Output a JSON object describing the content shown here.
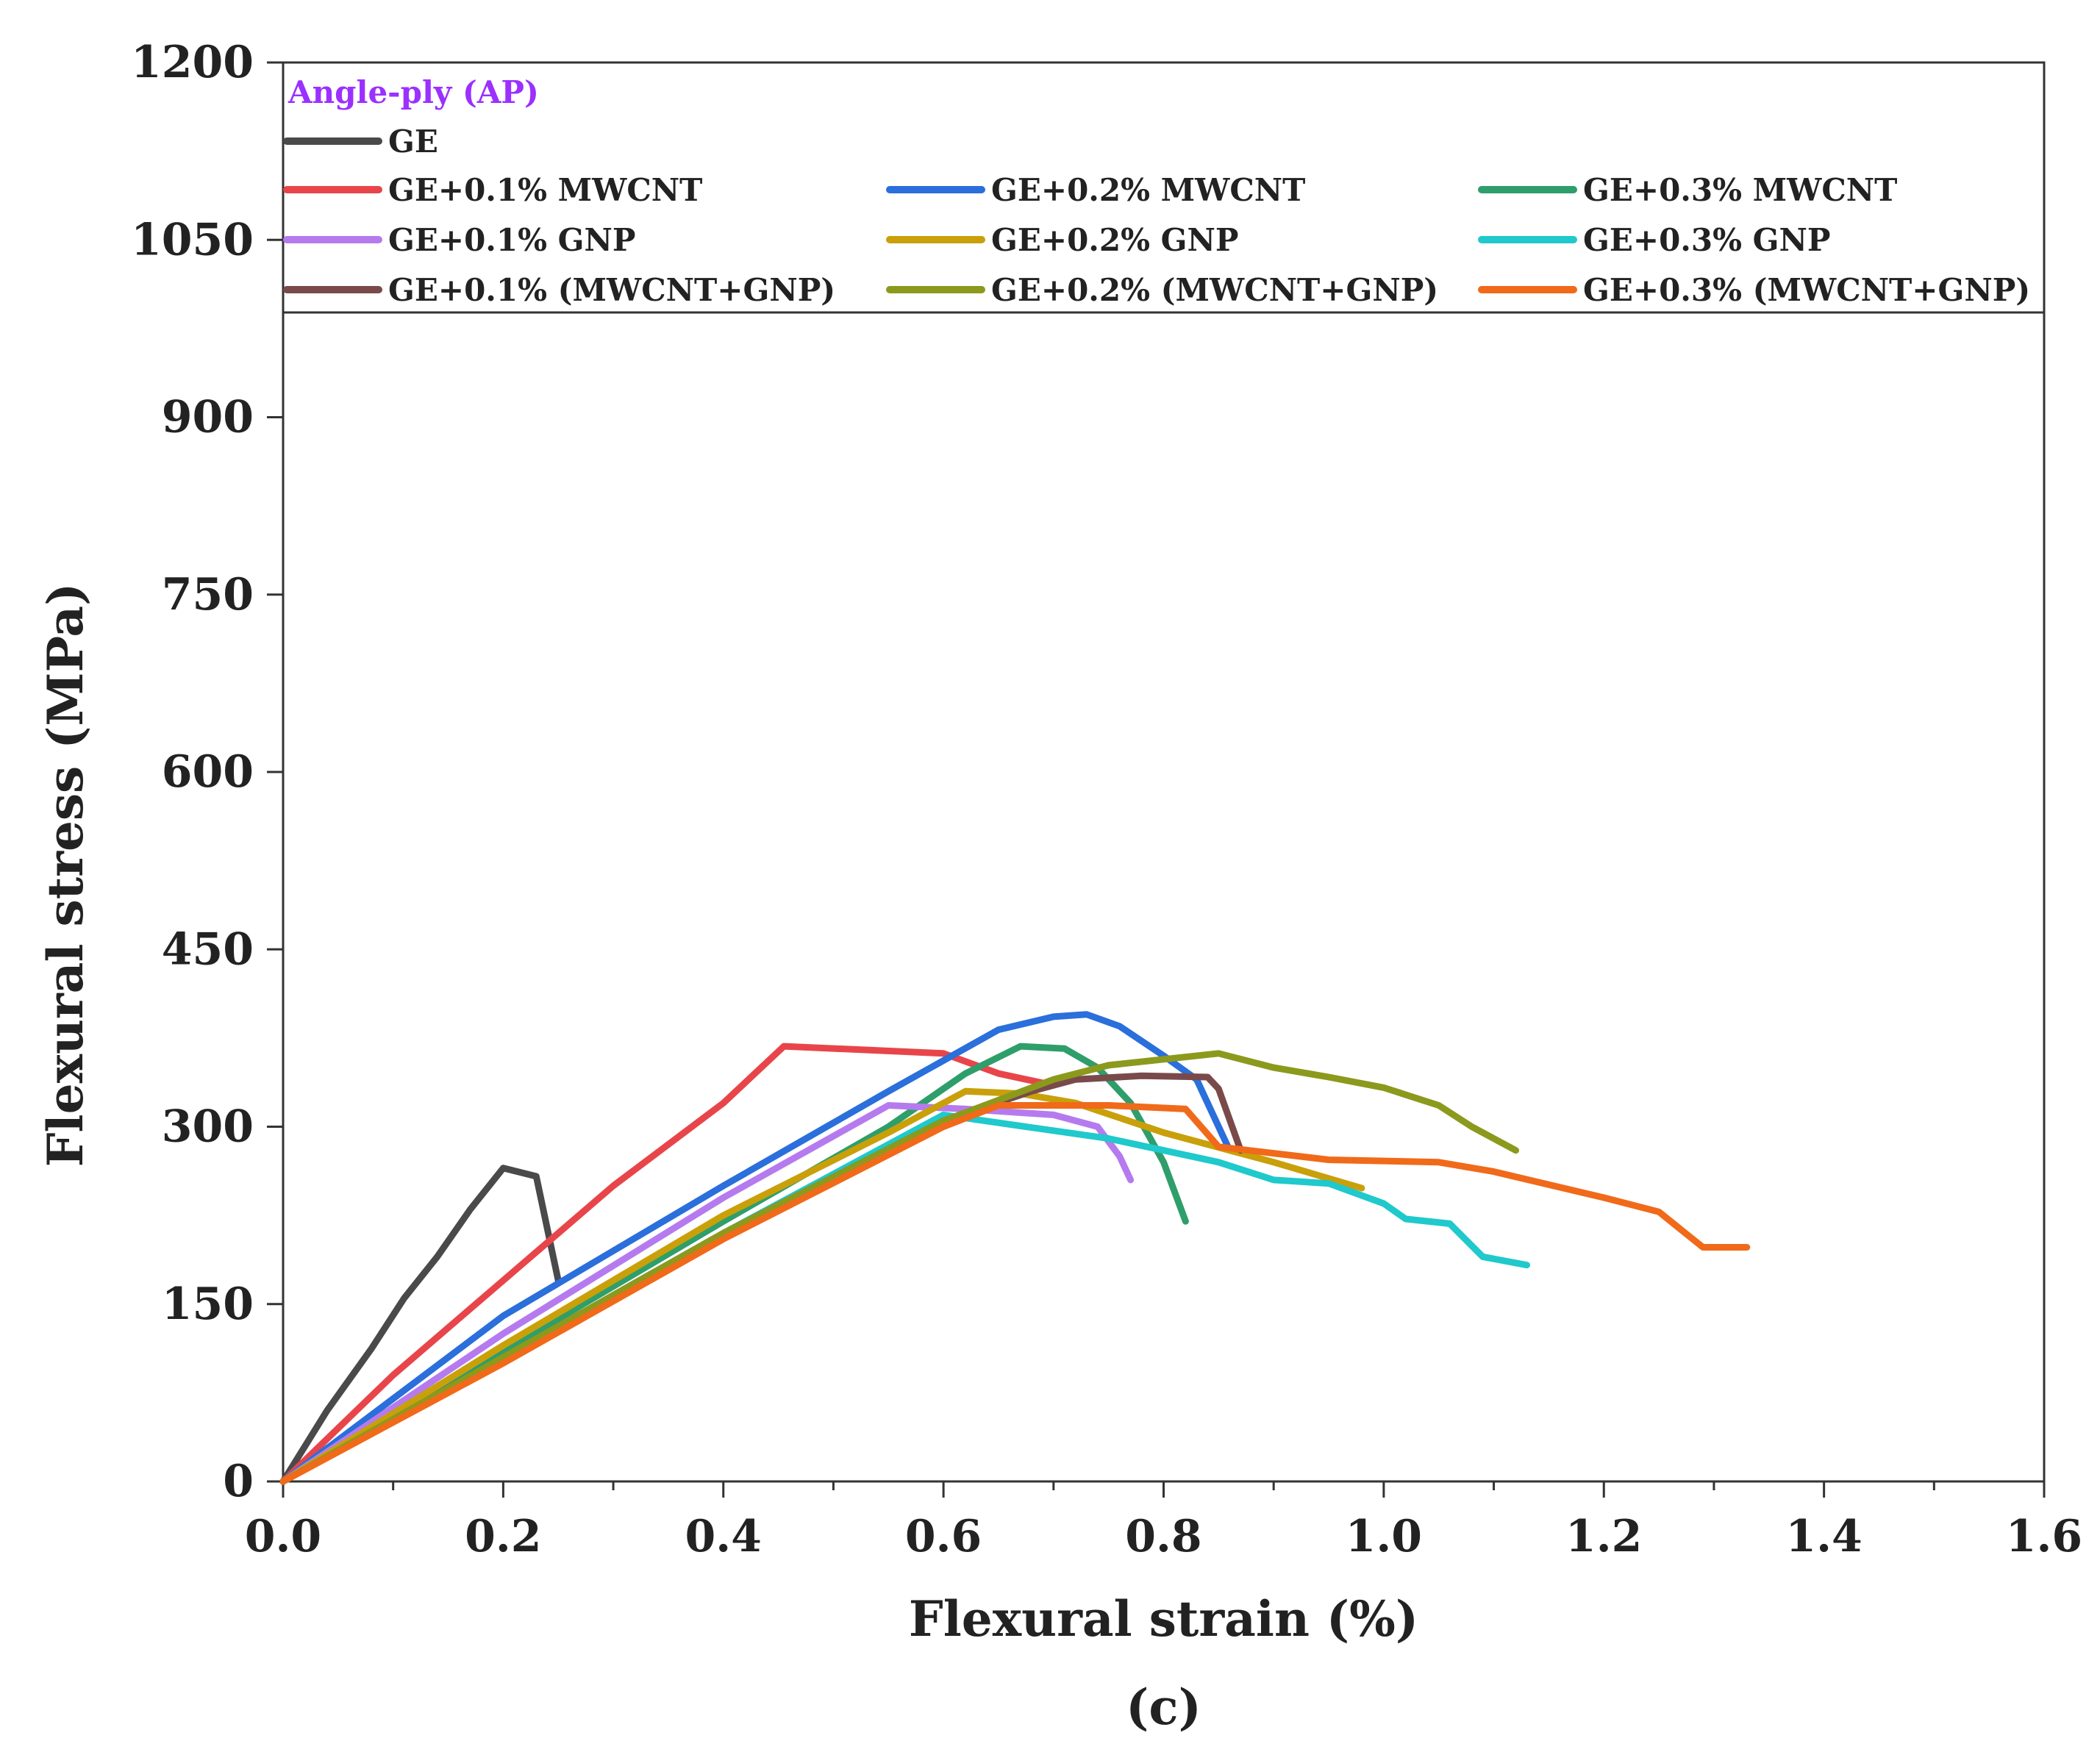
{
  "chart_data": {
    "type": "line",
    "legend_title": "Angle-ply (AP)",
    "legend_title_color": "#9b30ff",
    "xlabel": "Flexural strain (%)",
    "ylabel": "Flexural stress (MPa)",
    "xlim": [
      0,
      1.6
    ],
    "ylim": [
      0,
      1200
    ],
    "x_ticks": [
      "0.0",
      "0.2",
      "0.4",
      "0.6",
      "0.8",
      "1.0",
      "1.2",
      "1.4",
      "1.6"
    ],
    "y_ticks": [
      "0",
      "150",
      "300",
      "450",
      "600",
      "750",
      "900",
      "1050",
      "1200"
    ],
    "x_tick_values": [
      0,
      0.2,
      0.4,
      0.6,
      0.8,
      1.0,
      1.2,
      1.4,
      1.6
    ],
    "y_tick_values": [
      0,
      150,
      300,
      450,
      600,
      750,
      900,
      1050,
      1200
    ],
    "legend_placement": "top",
    "grid": false,
    "panel_label": "(c)",
    "series": [
      {
        "name": "GE",
        "color": "#4a4a4a",
        "points": [
          [
            0,
            0
          ],
          [
            0.04,
            60
          ],
          [
            0.08,
            112
          ],
          [
            0.11,
            155
          ],
          [
            0.14,
            190
          ],
          [
            0.17,
            230
          ],
          [
            0.2,
            265
          ],
          [
            0.23,
            258
          ],
          [
            0.25,
            170
          ]
        ]
      },
      {
        "name": "GE+0.1% MWCNT",
        "color": "#e8454a",
        "points": [
          [
            0,
            0
          ],
          [
            0.1,
            90
          ],
          [
            0.2,
            170
          ],
          [
            0.3,
            250
          ],
          [
            0.4,
            320
          ],
          [
            0.455,
            368
          ],
          [
            0.6,
            362
          ],
          [
            0.65,
            345
          ],
          [
            0.7,
            335
          ]
        ]
      },
      {
        "name": "GE+0.2% MWCNT",
        "color": "#2a6fdb",
        "points": [
          [
            0,
            0
          ],
          [
            0.2,
            140
          ],
          [
            0.4,
            250
          ],
          [
            0.55,
            330
          ],
          [
            0.65,
            382
          ],
          [
            0.7,
            393
          ],
          [
            0.73,
            395
          ],
          [
            0.76,
            385
          ],
          [
            0.8,
            360
          ],
          [
            0.83,
            340
          ],
          [
            0.86,
            280
          ]
        ]
      },
      {
        "name": "GE+0.3% MWCNT",
        "color": "#2e9e6b",
        "points": [
          [
            0,
            0
          ],
          [
            0.2,
            110
          ],
          [
            0.4,
            220
          ],
          [
            0.55,
            300
          ],
          [
            0.62,
            345
          ],
          [
            0.67,
            368
          ],
          [
            0.71,
            366
          ],
          [
            0.74,
            350
          ],
          [
            0.77,
            320
          ],
          [
            0.8,
            270
          ],
          [
            0.82,
            220
          ]
        ]
      },
      {
        "name": "GE+0.1% GNP",
        "color": "#b57bee",
        "points": [
          [
            0,
            0
          ],
          [
            0.2,
            125
          ],
          [
            0.4,
            240
          ],
          [
            0.55,
            318
          ],
          [
            0.62,
            315
          ],
          [
            0.7,
            310
          ],
          [
            0.74,
            300
          ],
          [
            0.76,
            275
          ],
          [
            0.77,
            255
          ]
        ]
      },
      {
        "name": "GE+0.2% GNP",
        "color": "#c9a00a",
        "points": [
          [
            0,
            0
          ],
          [
            0.2,
            115
          ],
          [
            0.4,
            225
          ],
          [
            0.55,
            295
          ],
          [
            0.62,
            330
          ],
          [
            0.67,
            328
          ],
          [
            0.72,
            320
          ],
          [
            0.8,
            295
          ],
          [
            0.9,
            270
          ],
          [
            0.98,
            248
          ]
        ]
      },
      {
        "name": "GE+0.3% GNP",
        "color": "#1fc9cc",
        "points": [
          [
            0,
            0
          ],
          [
            0.2,
            105
          ],
          [
            0.4,
            210
          ],
          [
            0.6,
            310
          ],
          [
            0.66,
            302
          ],
          [
            0.75,
            290
          ],
          [
            0.85,
            270
          ],
          [
            0.9,
            255
          ],
          [
            0.95,
            252
          ],
          [
            1.0,
            235
          ],
          [
            1.02,
            222
          ],
          [
            1.06,
            218
          ],
          [
            1.09,
            190
          ],
          [
            1.13,
            183
          ]
        ]
      },
      {
        "name": "GE+0.1% (MWCNT+GNP)",
        "color": "#7a4a4a",
        "points": [
          [
            0,
            0
          ],
          [
            0.2,
            105
          ],
          [
            0.4,
            210
          ],
          [
            0.6,
            305
          ],
          [
            0.68,
            330
          ],
          [
            0.72,
            340
          ],
          [
            0.78,
            343
          ],
          [
            0.84,
            342
          ],
          [
            0.85,
            332
          ],
          [
            0.87,
            280
          ]
        ]
      },
      {
        "name": "GE+0.2% (MWCNT+GNP)",
        "color": "#8b9a1c",
        "points": [
          [
            0,
            0
          ],
          [
            0.2,
            105
          ],
          [
            0.4,
            210
          ],
          [
            0.6,
            305
          ],
          [
            0.7,
            340
          ],
          [
            0.75,
            352
          ],
          [
            0.85,
            362
          ],
          [
            0.9,
            350
          ],
          [
            0.95,
            342
          ],
          [
            1.0,
            333
          ],
          [
            1.05,
            318
          ],
          [
            1.08,
            300
          ],
          [
            1.12,
            280
          ]
        ]
      },
      {
        "name": "GE+0.3% (MWCNT+GNP)",
        "color": "#f06a1a",
        "points": [
          [
            0,
            0
          ],
          [
            0.2,
            100
          ],
          [
            0.4,
            205
          ],
          [
            0.6,
            300
          ],
          [
            0.65,
            318
          ],
          [
            0.75,
            318
          ],
          [
            0.82,
            315
          ],
          [
            0.85,
            283
          ],
          [
            0.95,
            272
          ],
          [
            1.05,
            270
          ],
          [
            1.1,
            262
          ],
          [
            1.2,
            240
          ],
          [
            1.25,
            228
          ],
          [
            1.29,
            198
          ],
          [
            1.33,
            198
          ]
        ]
      }
    ]
  }
}
